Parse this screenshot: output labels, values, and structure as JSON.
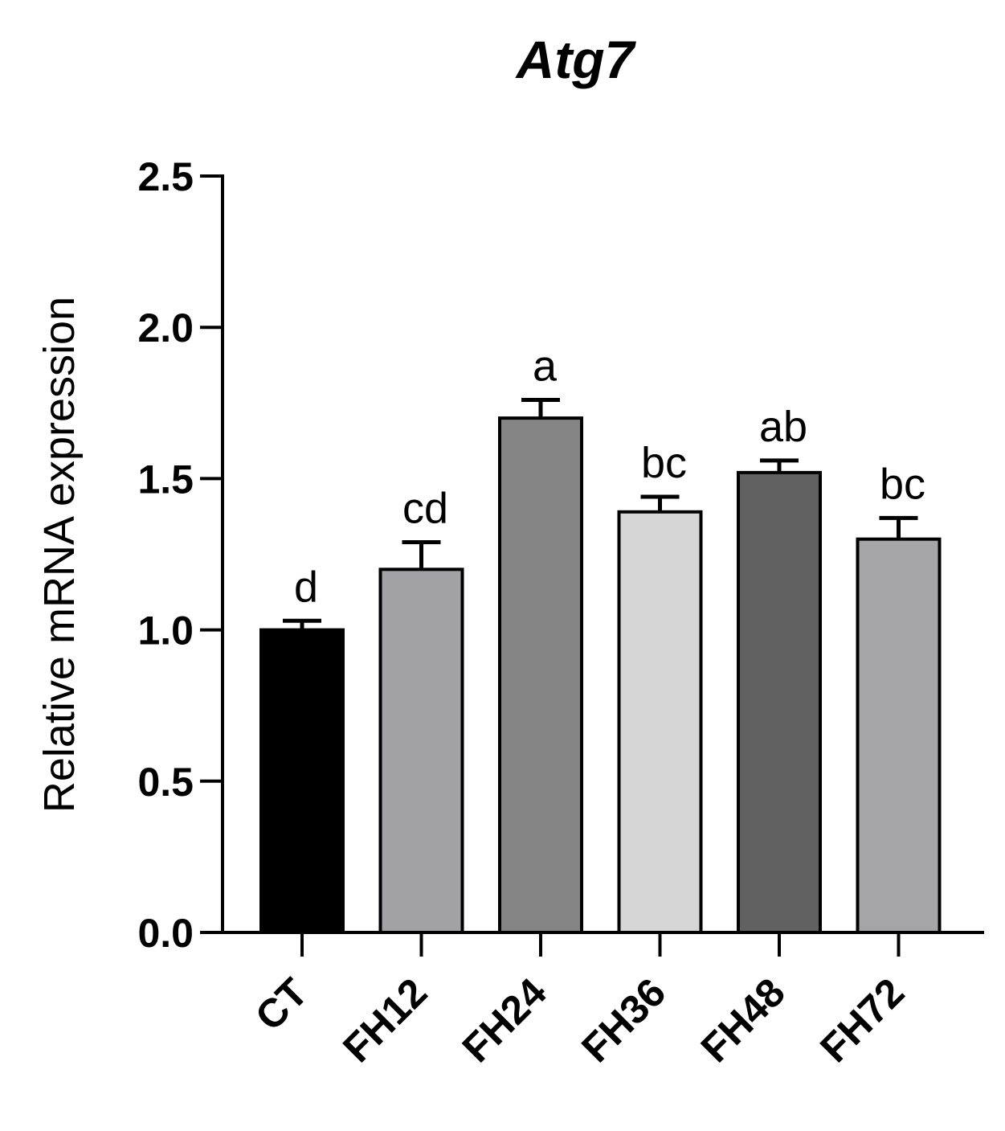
{
  "chart_data": {
    "type": "bar",
    "title": "Atg7",
    "xlabel": "",
    "ylabel": "Relative mRNA expression",
    "ylim": [
      0,
      2.5
    ],
    "yticks": [
      0.0,
      0.5,
      1.0,
      1.5,
      2.0,
      2.5
    ],
    "ytick_labels": [
      "0.0",
      "0.5",
      "1.0",
      "1.5",
      "2.0",
      "2.5"
    ],
    "categories": [
      "CT",
      "FH12",
      "FH24",
      "FH36",
      "FH48",
      "FH72"
    ],
    "values": [
      1.0,
      1.2,
      1.7,
      1.39,
      1.52,
      1.3
    ],
    "errors": [
      0.03,
      0.09,
      0.06,
      0.05,
      0.04,
      0.07
    ],
    "significance": [
      "d",
      "cd",
      "a",
      "bc",
      "ab",
      "bc"
    ],
    "colors": [
      "#000000",
      "#a1a1a6",
      "#858585",
      "#d6d6d6",
      "#616161",
      "#a5a5a8"
    ],
    "grid": false
  }
}
